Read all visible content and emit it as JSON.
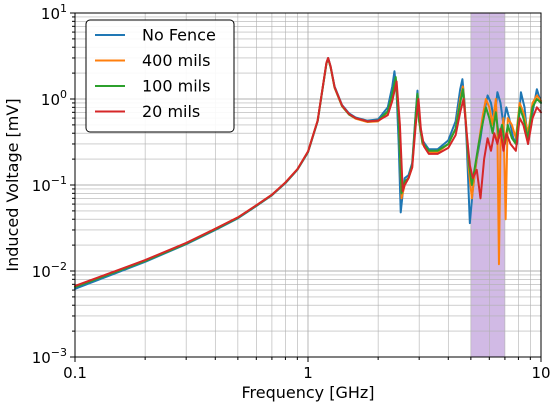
{
  "chart_data": {
    "type": "line",
    "xlabel": "Frequency [GHz]",
    "ylabel": "Induced Voltage [mV]",
    "x_scale": "log",
    "y_scale": "log",
    "xlim": [
      0.1,
      10
    ],
    "ylim": [
      0.001,
      10
    ],
    "x_ticks": [
      {
        "value": 0.1,
        "label": "0.1"
      },
      {
        "value": 1,
        "label": "1"
      },
      {
        "value": 10,
        "label": "10"
      }
    ],
    "y_ticks": [
      {
        "value": 0.001,
        "base": "10",
        "exp": "−3"
      },
      {
        "value": 0.01,
        "base": "10",
        "exp": "−2"
      },
      {
        "value": 0.1,
        "base": "10",
        "exp": "−1"
      },
      {
        "value": 1,
        "base": "10",
        "exp": "0"
      },
      {
        "value": 10,
        "base": "10",
        "exp": "1"
      }
    ],
    "grid": "major and minor",
    "legend_position": "top-left",
    "highlight_band": {
      "x_start": 5.0,
      "x_end": 7.0,
      "color": "#c9aee0"
    },
    "series": [
      {
        "name": "No Fence",
        "color": "#1f77b4",
        "points": [
          [
            0.1,
            0.0062
          ],
          [
            0.2,
            0.0128
          ],
          [
            0.3,
            0.0205
          ],
          [
            0.4,
            0.03
          ],
          [
            0.5,
            0.041
          ],
          [
            0.6,
            0.057
          ],
          [
            0.7,
            0.076
          ],
          [
            0.8,
            0.105
          ],
          [
            0.9,
            0.15
          ],
          [
            1.0,
            0.24
          ],
          [
            1.1,
            0.55
          ],
          [
            1.2,
            2.6
          ],
          [
            1.22,
            3.0
          ],
          [
            1.25,
            2.4
          ],
          [
            1.3,
            1.4
          ],
          [
            1.4,
            0.85
          ],
          [
            1.5,
            0.68
          ],
          [
            1.6,
            0.61
          ],
          [
            1.8,
            0.56
          ],
          [
            2.0,
            0.58
          ],
          [
            2.2,
            0.8
          ],
          [
            2.3,
            1.4
          ],
          [
            2.35,
            2.1
          ],
          [
            2.4,
            1.2
          ],
          [
            2.45,
            0.3
          ],
          [
            2.5,
            0.048
          ],
          [
            2.55,
            0.08
          ],
          [
            2.6,
            0.12
          ],
          [
            2.7,
            0.13
          ],
          [
            2.8,
            0.18
          ],
          [
            2.9,
            0.7
          ],
          [
            2.95,
            1.25
          ],
          [
            3.0,
            0.6
          ],
          [
            3.1,
            0.33
          ],
          [
            3.3,
            0.26
          ],
          [
            3.6,
            0.26
          ],
          [
            4.0,
            0.33
          ],
          [
            4.3,
            0.55
          ],
          [
            4.5,
            1.3
          ],
          [
            4.6,
            1.7
          ],
          [
            4.7,
            0.9
          ],
          [
            4.8,
            0.3
          ],
          [
            4.95,
            0.036
          ],
          [
            5.1,
            0.09
          ],
          [
            5.3,
            0.2
          ],
          [
            5.5,
            0.35
          ],
          [
            5.7,
            0.7
          ],
          [
            5.9,
            1.1
          ],
          [
            6.1,
            0.9
          ],
          [
            6.3,
            0.55
          ],
          [
            6.5,
            1.2
          ],
          [
            6.7,
            0.9
          ],
          [
            6.9,
            0.5
          ],
          [
            7.1,
            0.8
          ],
          [
            7.3,
            0.6
          ],
          [
            7.6,
            0.35
          ],
          [
            7.9,
            0.3
          ],
          [
            8.2,
            1.2
          ],
          [
            8.5,
            0.8
          ],
          [
            8.8,
            0.3
          ],
          [
            9.2,
            0.7
          ],
          [
            9.6,
            1.3
          ],
          [
            10,
            0.9
          ]
        ]
      },
      {
        "name": "400 mils",
        "color": "#ff7f0e",
        "points": [
          [
            0.1,
            0.0066
          ],
          [
            0.2,
            0.0133
          ],
          [
            0.3,
            0.021
          ],
          [
            0.4,
            0.031
          ],
          [
            0.5,
            0.042
          ],
          [
            0.6,
            0.058
          ],
          [
            0.7,
            0.077
          ],
          [
            0.8,
            0.107
          ],
          [
            0.9,
            0.152
          ],
          [
            1.0,
            0.245
          ],
          [
            1.1,
            0.56
          ],
          [
            1.2,
            2.6
          ],
          [
            1.22,
            2.95
          ],
          [
            1.25,
            2.35
          ],
          [
            1.3,
            1.35
          ],
          [
            1.4,
            0.82
          ],
          [
            1.5,
            0.66
          ],
          [
            1.6,
            0.59
          ],
          [
            1.8,
            0.54
          ],
          [
            2.0,
            0.55
          ],
          [
            2.2,
            0.7
          ],
          [
            2.3,
            1.1
          ],
          [
            2.38,
            1.7
          ],
          [
            2.45,
            0.6
          ],
          [
            2.52,
            0.07
          ],
          [
            2.6,
            0.1
          ],
          [
            2.7,
            0.12
          ],
          [
            2.8,
            0.16
          ],
          [
            2.9,
            0.6
          ],
          [
            2.95,
            1.1
          ],
          [
            3.0,
            0.55
          ],
          [
            3.1,
            0.3
          ],
          [
            3.3,
            0.24
          ],
          [
            3.6,
            0.24
          ],
          [
            4.0,
            0.3
          ],
          [
            4.3,
            0.45
          ],
          [
            4.5,
            1.0
          ],
          [
            4.62,
            1.4
          ],
          [
            4.75,
            0.6
          ],
          [
            4.9,
            0.15
          ],
          [
            5.05,
            0.07
          ],
          [
            5.2,
            0.14
          ],
          [
            5.4,
            0.3
          ],
          [
            5.6,
            0.6
          ],
          [
            5.8,
            1.0
          ],
          [
            6.0,
            0.8
          ],
          [
            6.2,
            0.5
          ],
          [
            6.4,
            1.0
          ],
          [
            6.5,
            0.4
          ],
          [
            6.6,
            0.012
          ],
          [
            6.7,
            0.3
          ],
          [
            6.9,
            0.6
          ],
          [
            7.0,
            0.1
          ],
          [
            7.05,
            0.04
          ],
          [
            7.2,
            0.6
          ],
          [
            7.5,
            0.5
          ],
          [
            7.8,
            0.35
          ],
          [
            8.1,
            0.9
          ],
          [
            8.4,
            0.7
          ],
          [
            8.8,
            0.4
          ],
          [
            9.2,
            0.9
          ],
          [
            9.6,
            1.1
          ],
          [
            10,
            0.95
          ]
        ]
      },
      {
        "name": "100 mils",
        "color": "#2ca02c",
        "points": [
          [
            0.1,
            0.0065
          ],
          [
            0.2,
            0.0131
          ],
          [
            0.3,
            0.0208
          ],
          [
            0.4,
            0.0305
          ],
          [
            0.5,
            0.0415
          ],
          [
            0.6,
            0.0575
          ],
          [
            0.7,
            0.0765
          ],
          [
            0.8,
            0.106
          ],
          [
            0.9,
            0.151
          ],
          [
            1.0,
            0.242
          ],
          [
            1.1,
            0.555
          ],
          [
            1.2,
            2.6
          ],
          [
            1.22,
            2.95
          ],
          [
            1.25,
            2.35
          ],
          [
            1.3,
            1.37
          ],
          [
            1.4,
            0.83
          ],
          [
            1.5,
            0.66
          ],
          [
            1.6,
            0.6
          ],
          [
            1.8,
            0.55
          ],
          [
            2.0,
            0.56
          ],
          [
            2.2,
            0.72
          ],
          [
            2.3,
            1.15
          ],
          [
            2.38,
            1.8
          ],
          [
            2.45,
            0.55
          ],
          [
            2.52,
            0.08
          ],
          [
            2.6,
            0.11
          ],
          [
            2.7,
            0.12
          ],
          [
            2.8,
            0.17
          ],
          [
            2.9,
            0.65
          ],
          [
            2.95,
            1.15
          ],
          [
            3.0,
            0.55
          ],
          [
            3.1,
            0.31
          ],
          [
            3.3,
            0.25
          ],
          [
            3.6,
            0.25
          ],
          [
            4.0,
            0.3
          ],
          [
            4.3,
            0.45
          ],
          [
            4.5,
            0.9
          ],
          [
            4.62,
            1.3
          ],
          [
            4.75,
            0.55
          ],
          [
            4.9,
            0.18
          ],
          [
            5.05,
            0.1
          ],
          [
            5.2,
            0.16
          ],
          [
            5.4,
            0.3
          ],
          [
            5.6,
            0.5
          ],
          [
            5.8,
            0.8
          ],
          [
            6.0,
            0.6
          ],
          [
            6.2,
            0.4
          ],
          [
            6.4,
            0.7
          ],
          [
            6.6,
            0.35
          ],
          [
            6.8,
            0.5
          ],
          [
            7.0,
            0.3
          ],
          [
            7.2,
            0.5
          ],
          [
            7.5,
            0.35
          ],
          [
            7.8,
            0.3
          ],
          [
            8.1,
            0.8
          ],
          [
            8.4,
            0.6
          ],
          [
            8.8,
            0.35
          ],
          [
            9.2,
            0.8
          ],
          [
            9.6,
            1.0
          ],
          [
            10,
            0.9
          ]
        ]
      },
      {
        "name": "20 mils",
        "color": "#d62728",
        "points": [
          [
            0.1,
            0.0067
          ],
          [
            0.2,
            0.0134
          ],
          [
            0.3,
            0.0212
          ],
          [
            0.4,
            0.031
          ],
          [
            0.5,
            0.042
          ],
          [
            0.6,
            0.058
          ],
          [
            0.7,
            0.077
          ],
          [
            0.8,
            0.107
          ],
          [
            0.9,
            0.152
          ],
          [
            1.0,
            0.245
          ],
          [
            1.1,
            0.56
          ],
          [
            1.2,
            2.65
          ],
          [
            1.22,
            3.0
          ],
          [
            1.25,
            2.4
          ],
          [
            1.3,
            1.38
          ],
          [
            1.4,
            0.84
          ],
          [
            1.5,
            0.67
          ],
          [
            1.6,
            0.6
          ],
          [
            1.8,
            0.55
          ],
          [
            2.0,
            0.56
          ],
          [
            2.2,
            0.65
          ],
          [
            2.3,
            0.95
          ],
          [
            2.4,
            1.6
          ],
          [
            2.48,
            0.5
          ],
          [
            2.55,
            0.085
          ],
          [
            2.6,
            0.1
          ],
          [
            2.7,
            0.12
          ],
          [
            2.8,
            0.16
          ],
          [
            2.9,
            0.5
          ],
          [
            2.98,
            1.0
          ],
          [
            3.05,
            0.45
          ],
          [
            3.15,
            0.28
          ],
          [
            3.3,
            0.23
          ],
          [
            3.6,
            0.23
          ],
          [
            4.0,
            0.27
          ],
          [
            4.3,
            0.38
          ],
          [
            4.5,
            0.7
          ],
          [
            4.65,
            1.0
          ],
          [
            4.8,
            0.4
          ],
          [
            4.95,
            0.17
          ],
          [
            5.1,
            0.12
          ],
          [
            5.3,
            0.15
          ],
          [
            5.5,
            0.07
          ],
          [
            5.7,
            0.2
          ],
          [
            5.9,
            0.35
          ],
          [
            6.1,
            0.25
          ],
          [
            6.3,
            0.4
          ],
          [
            6.5,
            0.3
          ],
          [
            6.7,
            0.45
          ],
          [
            6.9,
            0.25
          ],
          [
            7.1,
            0.4
          ],
          [
            7.4,
            0.3
          ],
          [
            7.8,
            0.25
          ],
          [
            8.1,
            0.6
          ],
          [
            8.4,
            0.5
          ],
          [
            8.8,
            0.3
          ],
          [
            9.2,
            0.6
          ],
          [
            9.6,
            0.8
          ],
          [
            10,
            0.7
          ]
        ]
      }
    ]
  }
}
